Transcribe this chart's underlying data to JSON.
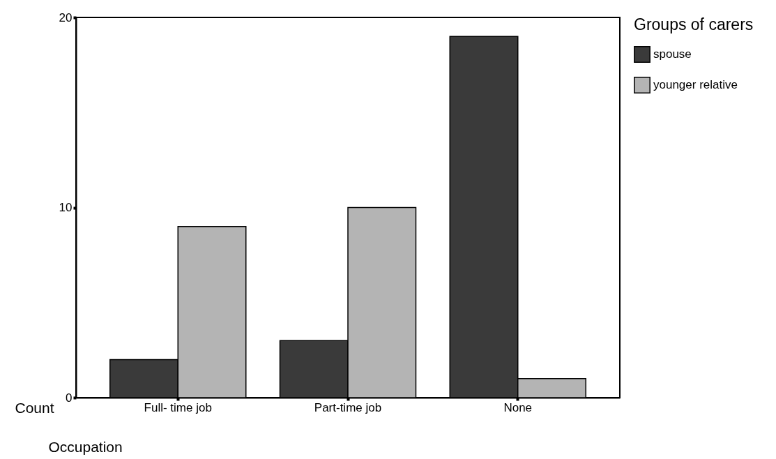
{
  "chart_data": {
    "type": "bar",
    "xlabel": "Occupation",
    "ylabel": "Count",
    "legend_title": "Groups of carers",
    "categories": [
      "Full- time job",
      "Part-time job",
      "None"
    ],
    "series": [
      {
        "name": "spouse",
        "color": "#3a3a3a",
        "values": [
          2,
          3,
          19
        ]
      },
      {
        "name": "younger relative",
        "color": "#b4b4b4",
        "values": [
          9,
          10,
          1
        ]
      }
    ],
    "ylim": [
      0,
      20
    ],
    "yticks": [
      0,
      10,
      20
    ],
    "grid": false,
    "legend": "right"
  }
}
